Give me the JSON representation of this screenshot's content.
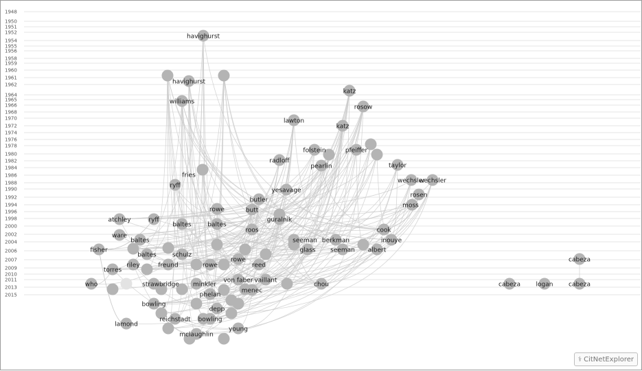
{
  "years": [
    "1948",
    "1950",
    "1951",
    "1952",
    "1954",
    "1955",
    "1956",
    "1958",
    "1959",
    "1960",
    "1961",
    "1962",
    "1964",
    "1965",
    "1966",
    "1968",
    "1970",
    "1972",
    "1974",
    "1976",
    "1978",
    "1980",
    "1982",
    "1984",
    "1986",
    "1988",
    "1990",
    "1992",
    "1994",
    "1996",
    "1998",
    "2000",
    "2002",
    "2004",
    "2006",
    "2007",
    "2009",
    "2010",
    "2011",
    "2013",
    "2015"
  ],
  "nodes": [
    {
      "label": "havighurst",
      "year": "1953"
    },
    {
      "label": "",
      "year": "1960"
    },
    {
      "label": "havighurst",
      "year": "1961"
    },
    {
      "label": "",
      "year": "1960"
    },
    {
      "label": "williams",
      "year": "1964"
    },
    {
      "label": "katz",
      "year": "1963"
    },
    {
      "label": "rosow",
      "year": "1967"
    },
    {
      "label": "lawton",
      "year": "1969"
    },
    {
      "label": "katz",
      "year": "1970"
    },
    {
      "label": "folstein",
      "year": "1975"
    },
    {
      "label": "",
      "year": "1975"
    },
    {
      "label": "pfeiffer",
      "year": "1975"
    },
    {
      "label": "",
      "year": "1974"
    },
    {
      "label": "",
      "year": "1976"
    },
    {
      "label": "radloff",
      "year": "1977"
    },
    {
      "label": "pearlin",
      "year": "1978"
    },
    {
      "label": "taylor",
      "year": "1979"
    },
    {
      "label": "fries",
      "year": "1980"
    },
    {
      "label": "ryff",
      "year": "1982"
    },
    {
      "label": "yesavage",
      "year": "1983"
    },
    {
      "label": "wechsler",
      "year": "1981"
    },
    {
      "label": "wechsler",
      "year": "1981"
    },
    {
      "label": "rosen",
      "year": "1984"
    },
    {
      "label": "moss",
      "year": "1986"
    },
    {
      "label": "butler",
      "year": "1985"
    },
    {
      "label": "rowe",
      "year": "1987"
    },
    {
      "label": "butt",
      "year": "1987"
    },
    {
      "label": "guralnik",
      "year": "1989"
    },
    {
      "label": "atchley",
      "year": "1989"
    },
    {
      "label": "ryff",
      "year": "1989"
    },
    {
      "label": "baltes",
      "year": "1990"
    },
    {
      "label": "baltes",
      "year": "1990"
    },
    {
      "label": "roos",
      "year": "1991"
    },
    {
      "label": "cook",
      "year": "1991"
    },
    {
      "label": "ware",
      "year": "1992"
    },
    {
      "label": "baltes",
      "year": "1993"
    },
    {
      "label": "seeman",
      "year": "1993"
    },
    {
      "label": "berkman",
      "year": "1993"
    },
    {
      "label": "inouye",
      "year": "1993"
    },
    {
      "label": "glass",
      "year": "1995"
    },
    {
      "label": "seeman",
      "year": "1995"
    },
    {
      "label": "albert",
      "year": "1995"
    },
    {
      "label": "fisher",
      "year": "1995"
    },
    {
      "label": "baltes",
      "year": "1996"
    },
    {
      "label": "schulz",
      "year": "1996"
    },
    {
      "label": "riley",
      "year": "1998"
    },
    {
      "label": "freund",
      "year": "1998"
    },
    {
      "label": "rowe",
      "year": "1998"
    },
    {
      "label": "rowe",
      "year": "1997"
    },
    {
      "label": "reed",
      "year": "1998"
    },
    {
      "label": "torres",
      "year": "1999"
    },
    {
      "label": "von faber",
      "year": "2001"
    },
    {
      "label": "vaillant",
      "year": "2001"
    },
    {
      "label": "who",
      "year": "2002"
    },
    {
      "label": "strawbridge",
      "year": "2002"
    },
    {
      "label": "minkler",
      "year": "2002"
    },
    {
      "label": "chou",
      "year": "2002"
    },
    {
      "label": "menec",
      "year": "2003"
    },
    {
      "label": "phelan",
      "year": "2004"
    },
    {
      "label": "bowling",
      "year": "2005"
    },
    {
      "label": "depp",
      "year": "2006"
    },
    {
      "label": "reichstadt",
      "year": "2007"
    },
    {
      "label": "bowling",
      "year": "2007"
    },
    {
      "label": "lamond",
      "year": "2008"
    },
    {
      "label": "young",
      "year": "2009"
    },
    {
      "label": "mclaughlin",
      "year": "2010"
    },
    {
      "label": "cabeza",
      "year": "1997"
    },
    {
      "label": "cabeza",
      "year": "2002"
    },
    {
      "label": "logan",
      "year": "2002"
    },
    {
      "label": "cabeza",
      "year": "2002"
    }
  ],
  "branding": {
    "logo_icon": "citnetexplorer-logo-icon",
    "text": "CitNetExplorer"
  }
}
